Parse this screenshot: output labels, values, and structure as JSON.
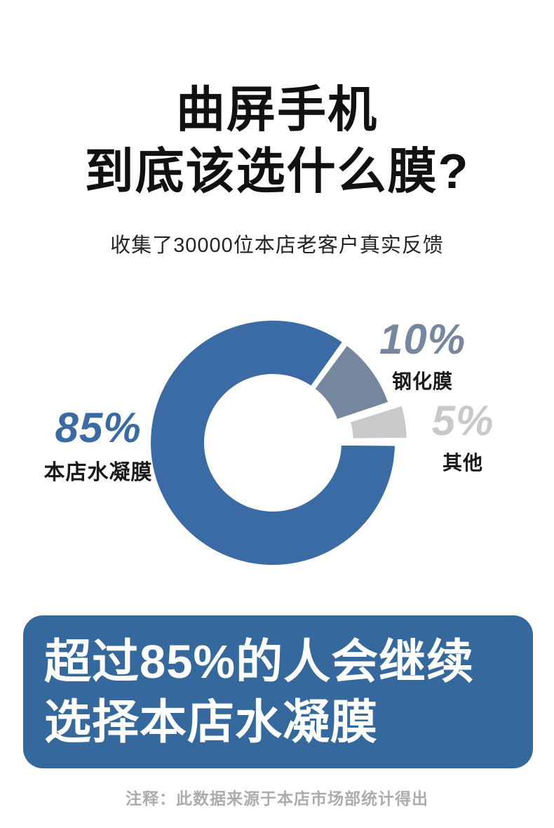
{
  "header": {
    "title_line1": "曲屏手机",
    "title_line2": "到底该选什么膜?",
    "subtitle": "收集了30000位本店老客户真实反馈"
  },
  "chart_data": {
    "type": "pie",
    "subtype": "donut",
    "title": "收集了30000位本店老客户真实反馈",
    "categories": [
      "本店水凝膜",
      "钢化膜",
      "其他"
    ],
    "values": [
      85,
      10,
      5
    ],
    "unit": "%",
    "legend_position": "around",
    "slices": [
      {
        "label": "其他",
        "value": 5,
        "color": "#C9C9C9",
        "exploded": true
      },
      {
        "label": "钢化膜",
        "value": 10,
        "color": "#74879E",
        "exploded": false
      },
      {
        "label": "本店水凝膜",
        "value": 85,
        "color": "#3A6BA4",
        "exploded": false
      }
    ]
  },
  "labels": {
    "hydrogel": {
      "pct": "85%",
      "name": "本店水凝膜",
      "color": "#3A6BA4"
    },
    "tempered": {
      "pct": "10%",
      "name": "钢化膜",
      "color": "#74879E"
    },
    "other": {
      "pct": "5%",
      "name": "其他",
      "color": "#C9C9C9"
    }
  },
  "banner": {
    "line1": "超过85%的人会继续",
    "line2": "选择本店水凝膜"
  },
  "footnote": "注释：此数据来源于本店市场部统计得出",
  "colors": {
    "donut_main": "#3A6BA4",
    "donut_secondary": "#74879E",
    "donut_other": "#C9C9C9",
    "banner_bg": "#35689D",
    "banner_text": "#FFFFFF",
    "title_text": "#111111",
    "note_text": "#ACACAC"
  }
}
